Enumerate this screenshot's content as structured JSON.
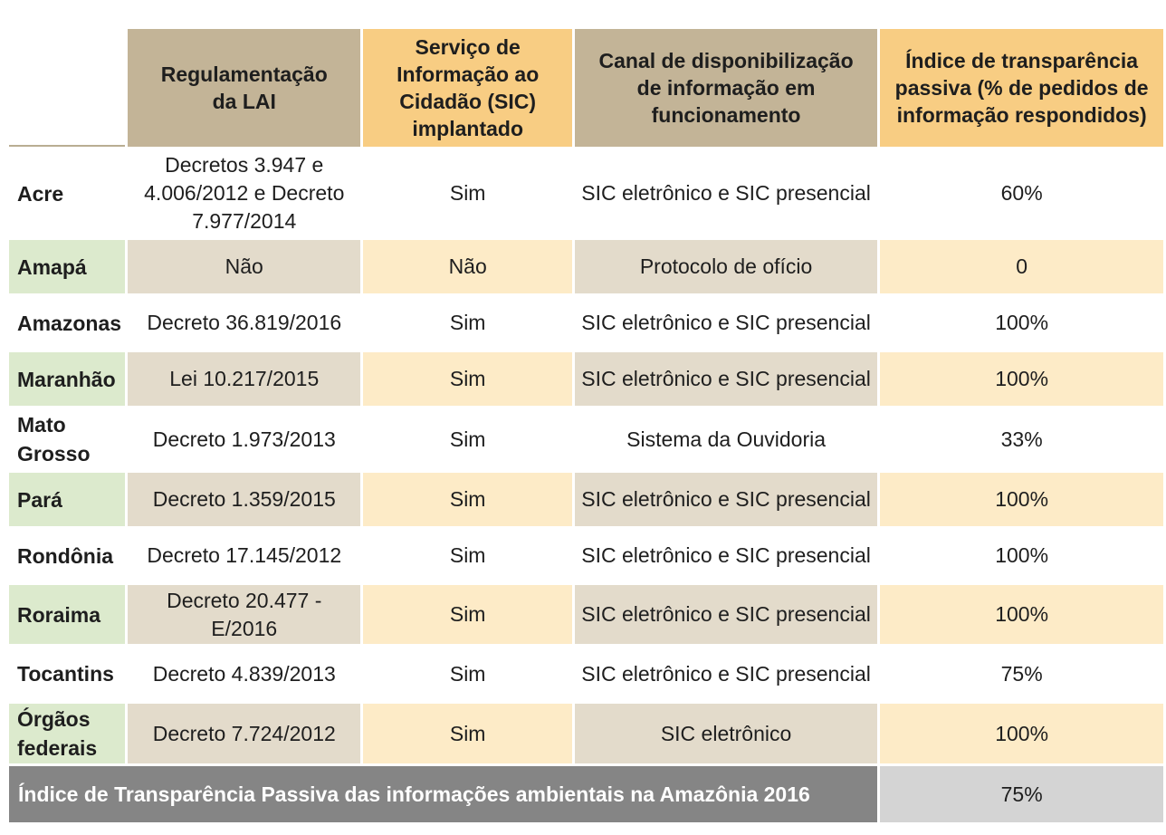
{
  "table": {
    "headers": {
      "state": "",
      "regulation": "Regulamentação da LAI",
      "sic": "Serviço de Informação ao Cidadão (SIC) implantado",
      "channel": "Canal de disponibilização de informação em funcionamento",
      "index": "Índice de transparência passiva (% de pedidos de informação respondidos)"
    },
    "rows": [
      {
        "state": "Acre",
        "regulation": "Decretos 3.947 e 4.006/2012 e Decreto 7.977/2014",
        "sic": "Sim",
        "channel": "SIC eletrônico e SIC presencial",
        "index": "60%"
      },
      {
        "state": "Amapá",
        "regulation": "Não",
        "sic": "Não",
        "channel": "Protocolo de ofício",
        "index": "0"
      },
      {
        "state": "Amazonas",
        "regulation": "Decreto 36.819/2016",
        "sic": "Sim",
        "channel": "SIC eletrônico e SIC presencial",
        "index": "100%"
      },
      {
        "state": "Maranhão",
        "regulation": "Lei 10.217/2015",
        "sic": "Sim",
        "channel": "SIC eletrônico e SIC presencial",
        "index": "100%"
      },
      {
        "state": "Mato Grosso",
        "regulation": "Decreto 1.973/2013",
        "sic": "Sim",
        "channel": "Sistema da Ouvidoria",
        "index": "33%"
      },
      {
        "state": "Pará",
        "regulation": "Decreto 1.359/2015",
        "sic": "Sim",
        "channel": "SIC eletrônico e SIC presencial",
        "index": "100%"
      },
      {
        "state": "Rondônia",
        "regulation": "Decreto 17.145/2012",
        "sic": "Sim",
        "channel": "SIC eletrônico e SIC presencial",
        "index": "100%"
      },
      {
        "state": "Roraima",
        "regulation": "Decreto 20.477 -E/2016",
        "sic": "Sim",
        "channel": "SIC eletrônico e SIC presencial",
        "index": "100%"
      },
      {
        "state": "Tocantins",
        "regulation": "Decreto 4.839/2013",
        "sic": "Sim",
        "channel": "SIC eletrônico e SIC presencial",
        "index": "75%"
      },
      {
        "state": "Órgãos federais",
        "regulation": "Decreto 7.724/2012",
        "sic": "Sim",
        "channel": "SIC eletrônico",
        "index": "100%"
      }
    ],
    "total": {
      "label": "Índice de Transparência Passiva das informações ambientais na Amazônia 2016",
      "value": "75%"
    }
  },
  "colors": {
    "header_tan": "#c3b497",
    "header_yellow": "#f8cd83",
    "row_state_green": "#dceacd",
    "row_tan": "#e3dbcb",
    "row_yellow": "#fdebc7",
    "total_dark": "#858585",
    "total_light": "#d4d4d4"
  }
}
